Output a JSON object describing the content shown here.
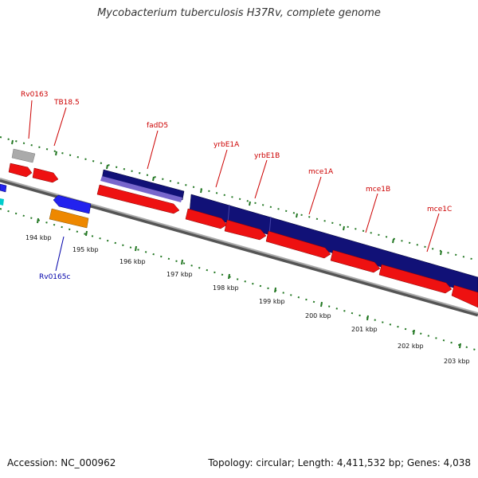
{
  "title": "Mycobacterium tuberculosis H37Rv, complete genome",
  "footer": {
    "accession": "Accession: NC_000962",
    "summary": "Topology: circular; Length: 4,411,532 bp; Genes: 4,038"
  },
  "colors": {
    "forward_gene": "#ee1111",
    "reverse_gene_blue": "#2222ee",
    "reverse_gene_orange": "#ee8800",
    "operon_dark": "#111177",
    "operon_light": "#7766cc",
    "grey_feature": "#aaaaaa",
    "cyan_feature": "#00cccc",
    "backbone": "#888888",
    "tick": "#227722",
    "label_forward": "#cc0000",
    "label_reverse": "#0000aa"
  },
  "scale": {
    "unit": "kbp",
    "ticks": [
      "194 kbp",
      "195 kbp",
      "196 kbp",
      "197 kbp",
      "198 kbp",
      "199 kbp",
      "200 kbp",
      "201 kbp",
      "202 kbp",
      "203 kbp"
    ]
  },
  "genes": [
    {
      "name": "Rv0163",
      "strand": "+",
      "labeled": true
    },
    {
      "name": "TB18.5",
      "strand": "+",
      "labeled": true
    },
    {
      "name": "fadD5",
      "strand": "+",
      "labeled": true
    },
    {
      "name": "yrbE1A",
      "strand": "+",
      "labeled": true
    },
    {
      "name": "yrbE1B",
      "strand": "+",
      "labeled": true
    },
    {
      "name": "mce1A",
      "strand": "+",
      "labeled": true
    },
    {
      "name": "mce1B",
      "strand": "+",
      "labeled": true
    },
    {
      "name": "mce1C",
      "strand": "+",
      "labeled": true
    },
    {
      "name": "Rv0165c",
      "strand": "-",
      "labeled": true
    }
  ]
}
